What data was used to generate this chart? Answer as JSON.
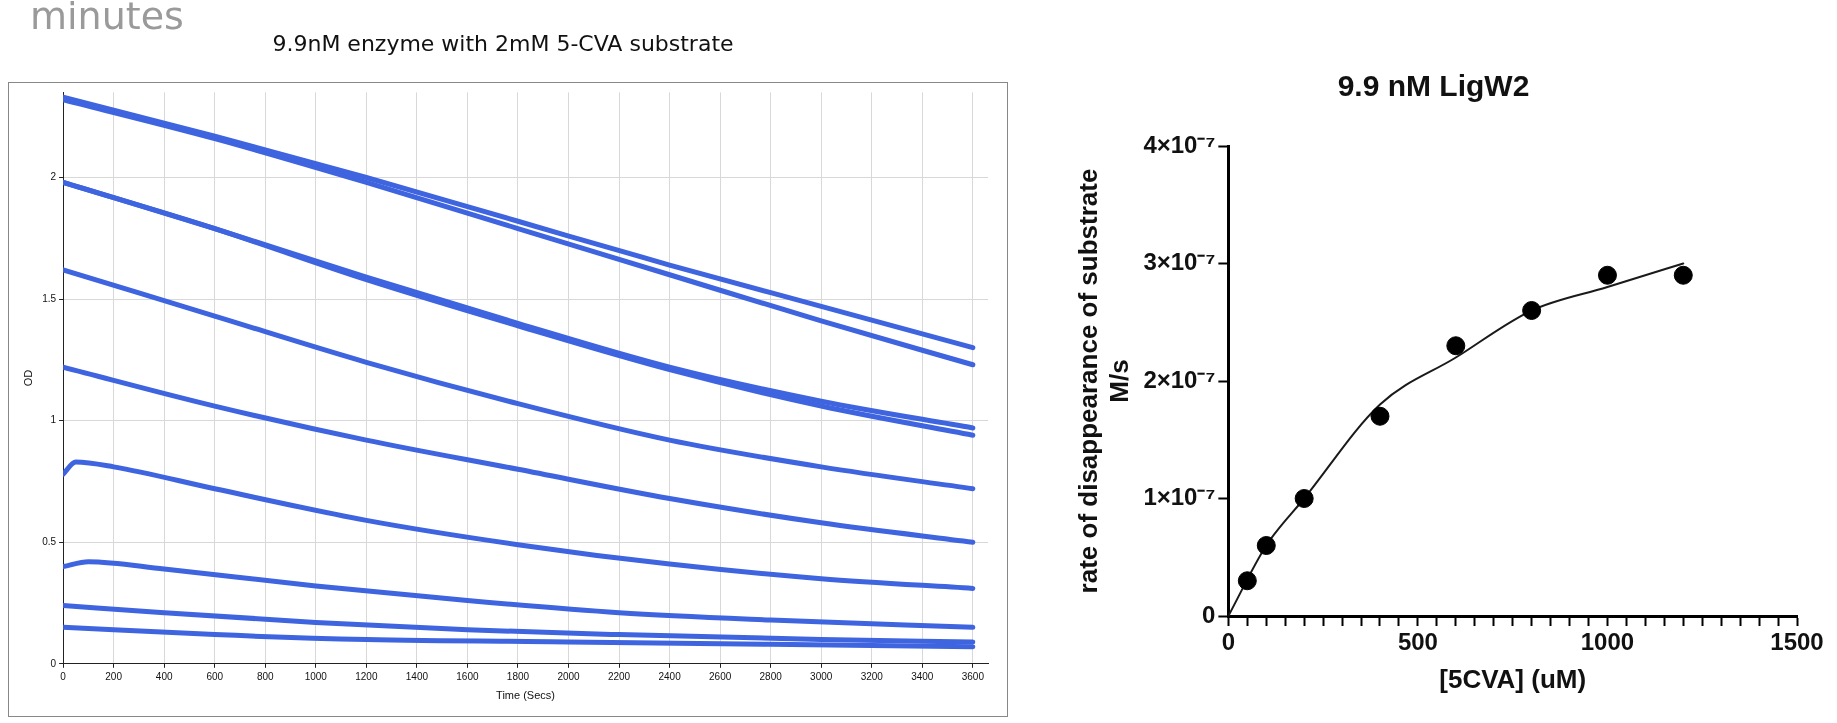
{
  "chart_data": [
    {
      "type": "line",
      "title": "9.9nM enzyme with 2mM 5-CVA substrate",
      "xlabel": "Time (Secs)",
      "ylabel": "OD",
      "annotations": [
        "minutes"
      ],
      "xlim": [
        0,
        3660
      ],
      "ylim": [
        0,
        2.35
      ],
      "xticks": [
        0,
        200,
        400,
        600,
        800,
        1000,
        1200,
        1400,
        1600,
        1800,
        2000,
        2200,
        2400,
        2600,
        2800,
        3000,
        3200,
        3400,
        3600
      ],
      "yticks": [
        0,
        0.5,
        1,
        1.5,
        2
      ],
      "grid": true,
      "legend": false,
      "marker": "none",
      "series": [
        {
          "color": "#3e64e0",
          "x": [
            0,
            600,
            1200,
            1800,
            2400,
            3000,
            3600
          ],
          "values": [
            2.33,
            2.17,
            2.0,
            1.82,
            1.64,
            1.47,
            1.3
          ]
        },
        {
          "color": "#3e64e0",
          "x": [
            0,
            600,
            1200,
            1800,
            2400,
            3000,
            3600
          ],
          "values": [
            2.32,
            2.16,
            1.98,
            1.79,
            1.6,
            1.41,
            1.23
          ]
        },
        {
          "color": "#3e64e0",
          "x": [
            0,
            600,
            1200,
            1800,
            2400,
            3000,
            3600
          ],
          "values": [
            1.98,
            1.79,
            1.59,
            1.4,
            1.22,
            1.08,
            0.97
          ]
        },
        {
          "color": "#3e64e0",
          "x": [
            0,
            600,
            1200,
            1800,
            2400,
            3000,
            3600
          ],
          "values": [
            1.98,
            1.79,
            1.58,
            1.39,
            1.21,
            1.06,
            0.94
          ]
        },
        {
          "color": "#3e64e0",
          "x": [
            0,
            600,
            1200,
            1800,
            2400,
            3000,
            3600
          ],
          "values": [
            1.62,
            1.43,
            1.24,
            1.07,
            0.92,
            0.81,
            0.72
          ]
        },
        {
          "color": "#3e64e0",
          "x": [
            0,
            600,
            1200,
            1800,
            2400,
            3000,
            3600
          ],
          "values": [
            1.22,
            1.06,
            0.92,
            0.8,
            0.68,
            0.58,
            0.5
          ]
        },
        {
          "color": "#3e64e0",
          "x": [
            0,
            50,
            200,
            600,
            1200,
            1800,
            2400,
            3000,
            3600
          ],
          "values": [
            0.78,
            0.83,
            0.81,
            0.72,
            0.59,
            0.49,
            0.41,
            0.35,
            0.31
          ]
        },
        {
          "color": "#3e64e0",
          "x": [
            0,
            100,
            400,
            1000,
            1600,
            2200,
            2800,
            3600
          ],
          "values": [
            0.4,
            0.42,
            0.39,
            0.32,
            0.26,
            0.21,
            0.18,
            0.15
          ]
        },
        {
          "color": "#3e64e0",
          "x": [
            0,
            400,
            1000,
            1600,
            2200,
            3000,
            3600
          ],
          "values": [
            0.24,
            0.21,
            0.17,
            0.14,
            0.12,
            0.1,
            0.09
          ]
        },
        {
          "color": "#3e64e0",
          "x": [
            0,
            600,
            1200,
            2000,
            3600
          ],
          "values": [
            0.15,
            0.12,
            0.1,
            0.09,
            0.07
          ]
        }
      ]
    },
    {
      "type": "scatter",
      "title": "9.9 nM LigW2",
      "xlabel": "[5CVA] (uM)",
      "ylabel": "rate of disappearance of substrate\nM/s",
      "xlim": [
        0,
        1500
      ],
      "ylim": [
        0,
        4e-07
      ],
      "xticks": [
        0,
        {
          "value": 50,
          "label": null
        },
        {
          "value": 100,
          "label": null
        },
        {
          "value": 150,
          "label": null
        },
        {
          "value": 200,
          "label": null
        },
        {
          "value": 250,
          "label": null
        },
        {
          "value": 300,
          "label": null
        },
        {
          "value": 350,
          "label": null
        },
        {
          "value": 400,
          "label": null
        },
        {
          "value": 450,
          "label": null
        },
        500,
        {
          "value": 550,
          "label": null
        },
        {
          "value": 600,
          "label": null
        },
        {
          "value": 650,
          "label": null
        },
        {
          "value": 700,
          "label": null
        },
        {
          "value": 750,
          "label": null
        },
        {
          "value": 800,
          "label": null
        },
        {
          "value": 850,
          "label": null
        },
        {
          "value": 900,
          "label": null
        },
        {
          "value": 950,
          "label": null
        },
        1000,
        {
          "value": 1050,
          "label": null
        },
        {
          "value": 1100,
          "label": null
        },
        {
          "value": 1150,
          "label": null
        },
        {
          "value": 1200,
          "label": null
        },
        {
          "value": 1250,
          "label": null
        },
        {
          "value": 1300,
          "label": null
        },
        {
          "value": 1350,
          "label": null
        },
        {
          "value": 1400,
          "label": null
        },
        {
          "value": 1450,
          "label": null
        },
        1500
      ],
      "yticks": [
        0,
        {
          "value": 1e-07,
          "label": "1×10⁻⁷"
        },
        {
          "value": 2e-07,
          "label": "2×10⁻⁷"
        },
        {
          "value": 3e-07,
          "label": "3×10⁻⁷"
        },
        {
          "value": 4e-07,
          "label": "4×10⁻⁷"
        }
      ],
      "grid": false,
      "legend": false,
      "marker": "circle",
      "series": [
        {
          "type": "scatter",
          "color": "#000000",
          "x": [
            50,
            100,
            200,
            400,
            600,
            800,
            1000,
            1200
          ],
          "values": [
            3e-08,
            6e-08,
            1e-07,
            1.7e-07,
            2.3e-07,
            2.6e-07,
            2.9e-07,
            2.9e-07
          ]
        },
        {
          "type": "line",
          "color": "#1a1a1a",
          "marker": "none",
          "x": [
            0,
            100,
            200,
            400,
            600,
            800,
            1000,
            1200
          ],
          "values": [
            0,
            6e-08,
            1e-07,
            1.8e-07,
            2.2e-07,
            2.6e-07,
            2.8e-07,
            3e-07
          ]
        }
      ]
    }
  ]
}
